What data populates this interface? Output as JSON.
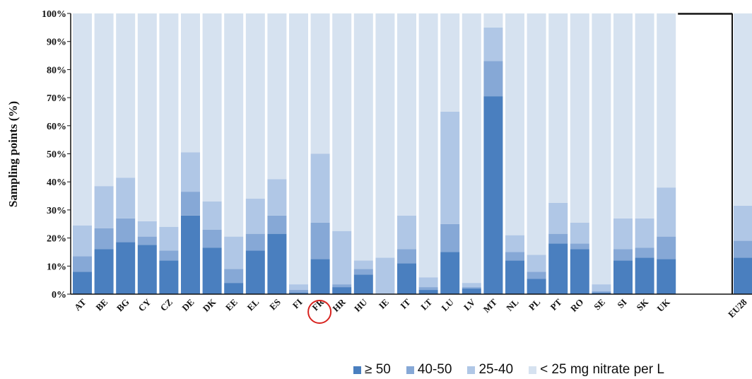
{
  "chart_data": {
    "type": "bar",
    "stacked": true,
    "ylabel": "Sampling points (%)",
    "xlabel": "",
    "ylim": [
      0,
      100
    ],
    "yticks": [
      "0%",
      "10%",
      "20%",
      "30%",
      "40%",
      "50%",
      "60%",
      "70%",
      "80%",
      "90%",
      "100%"
    ],
    "grid": false,
    "legend_position": "bottom-right",
    "categories": [
      "AT",
      "BE",
      "BG",
      "CY",
      "CZ",
      "DE",
      "DK",
      "EE",
      "EL",
      "ES",
      "FI",
      "FR",
      "HR",
      "HU",
      "IE",
      "IT",
      "LT",
      "LU",
      "LV",
      "MT",
      "NL",
      "PL",
      "PT",
      "RO",
      "SE",
      "SI",
      "SK",
      "UK",
      "EU28"
    ],
    "highlighted_category": "FR",
    "series": [
      {
        "name": "≥ 50",
        "color": "#4a7fbf",
        "values": [
          8,
          16,
          18.5,
          17.5,
          12,
          28,
          16.5,
          4,
          15.5,
          21.5,
          0.5,
          12.5,
          2.5,
          7,
          0,
          11,
          1.5,
          15,
          2,
          70.5,
          12,
          5.5,
          18,
          16,
          0.5,
          12,
          13,
          12.5,
          13
        ]
      },
      {
        "name": "40-50",
        "color": "#86a8d6",
        "values": [
          5.5,
          7.5,
          8.5,
          3,
          3.5,
          8.5,
          6.5,
          5,
          6,
          6.5,
          1,
          13,
          1,
          2,
          0,
          5,
          1,
          10,
          0.5,
          12.5,
          3,
          2.5,
          3.5,
          2,
          0.5,
          4,
          3.5,
          8,
          6
        ]
      },
      {
        "name": "25-40",
        "color": "#b0c7e6",
        "values": [
          11,
          15,
          14.5,
          5.5,
          8.5,
          14,
          10,
          11.5,
          12.5,
          13,
          2,
          24.5,
          19,
          3,
          13,
          12,
          3.5,
          40,
          1.5,
          12,
          6,
          6,
          11,
          7.5,
          2.5,
          11,
          10.5,
          17.5,
          12.5
        ]
      },
      {
        "name": "< 25 mg nitrate per L",
        "color": "#d6e2f0",
        "values": [
          75.5,
          61.5,
          58.5,
          74,
          76,
          49.5,
          67,
          79.5,
          66,
          59,
          96.5,
          50,
          77.5,
          88,
          87,
          72,
          94,
          35,
          96,
          5,
          79,
          86,
          67.5,
          74.5,
          96.5,
          73,
          73,
          62,
          68.5
        ]
      }
    ]
  }
}
